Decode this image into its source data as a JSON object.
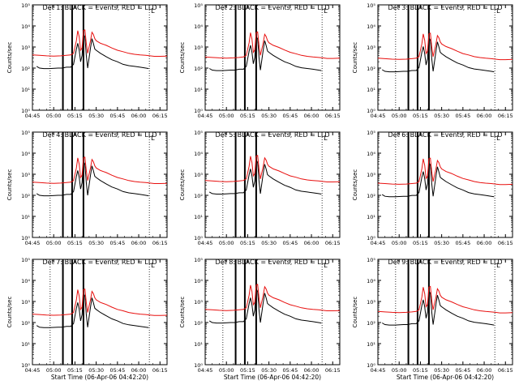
{
  "chart_data": {
    "type": "line",
    "ylabel": "Counts/sec",
    "xlabel": "Start Time (06-Apr-06 04:42:20)",
    "y_scale": "log",
    "ylim": [
      1,
      100000
    ],
    "xlim_minutes_after_0445": [
      0,
      95
    ],
    "x_tick_labels": [
      "04:45",
      "05:00",
      "05:15",
      "05:30",
      "05:45",
      "06:00",
      "06:15"
    ],
    "y_tick_labels": [
      "10⁰",
      "10¹",
      "10²",
      "10³",
      "10⁴",
      "10⁵"
    ],
    "colors": {
      "events": "#000000",
      "lld": "#e8100f"
    },
    "marker_lines_minutes": {
      "dotted": [
        12.5,
        82.5
      ],
      "solid": [
        21.5,
        28,
        36
      ]
    },
    "panels": [
      {
        "title": "Det 1:  BLACK = Events, RED = LLD",
        "tail_label": "L"
      },
      {
        "title": "Det 2:  BLACK = Events, RED = LLD",
        "tail_label": "L"
      },
      {
        "title": "Det 3:  BLACK = Events, RED = LLD",
        "tail_label": "L"
      },
      {
        "title": "Det 4:  BLACK = Events, RED = LLD",
        "tail_label": "L"
      },
      {
        "title": "Det 5:  BLACK = Events, RED = LLD",
        "tail_label": "L"
      },
      {
        "title": "Det 6:  BLACK = Events, RED = LLD",
        "tail_label": "L"
      },
      {
        "title": "Det 7:  BLACK = Events, RED = LLD",
        "tail_label": "L"
      },
      {
        "title": "Det 8:  BLACK = Events, RED = LLD",
        "tail_label": "L"
      },
      {
        "title": "Det 9:  BLACK = Events, RED = LLD",
        "tail_label": "L"
      }
    ],
    "series": [
      {
        "name": "Events",
        "points": [
          [
            3,
            120
          ],
          [
            5,
            100
          ],
          [
            8,
            95
          ],
          [
            12,
            95
          ],
          [
            18,
            100
          ],
          [
            21,
            100
          ],
          [
            24,
            110
          ],
          [
            27,
            110
          ],
          [
            29,
            150
          ],
          [
            31,
            800
          ],
          [
            32,
            1500
          ],
          [
            33,
            700
          ],
          [
            34,
            200
          ],
          [
            35,
            400
          ],
          [
            36,
            4000
          ],
          [
            37,
            3000
          ],
          [
            38,
            400
          ],
          [
            39,
            100
          ],
          [
            41,
            900
          ],
          [
            42,
            2500
          ],
          [
            43,
            1500
          ],
          [
            44,
            800
          ],
          [
            45,
            700
          ],
          [
            48,
            500
          ],
          [
            52,
            350
          ],
          [
            56,
            250
          ],
          [
            60,
            200
          ],
          [
            64,
            150
          ],
          [
            68,
            130
          ],
          [
            72,
            120
          ],
          [
            76,
            110
          ],
          [
            80,
            100
          ],
          [
            82,
            95
          ]
        ]
      },
      {
        "name": "LLD",
        "points": [
          [
            0,
            420
          ],
          [
            5,
            400
          ],
          [
            10,
            380
          ],
          [
            15,
            370
          ],
          [
            20,
            380
          ],
          [
            24,
            400
          ],
          [
            27,
            420
          ],
          [
            29,
            500
          ],
          [
            31,
            2000
          ],
          [
            32,
            6000
          ],
          [
            33,
            3000
          ],
          [
            34,
            700
          ],
          [
            35,
            900
          ],
          [
            36,
            6000
          ],
          [
            37,
            6500
          ],
          [
            38,
            1500
          ],
          [
            39,
            500
          ],
          [
            41,
            2000
          ],
          [
            42,
            5000
          ],
          [
            43,
            4000
          ],
          [
            44,
            2500
          ],
          [
            45,
            2000
          ],
          [
            48,
            1500
          ],
          [
            52,
            1200
          ],
          [
            56,
            900
          ],
          [
            60,
            700
          ],
          [
            64,
            600
          ],
          [
            68,
            500
          ],
          [
            72,
            450
          ],
          [
            76,
            420
          ],
          [
            80,
            400
          ],
          [
            83,
            380
          ],
          [
            86,
            360
          ],
          [
            90,
            360
          ],
          [
            95,
            370
          ]
        ]
      }
    ]
  }
}
